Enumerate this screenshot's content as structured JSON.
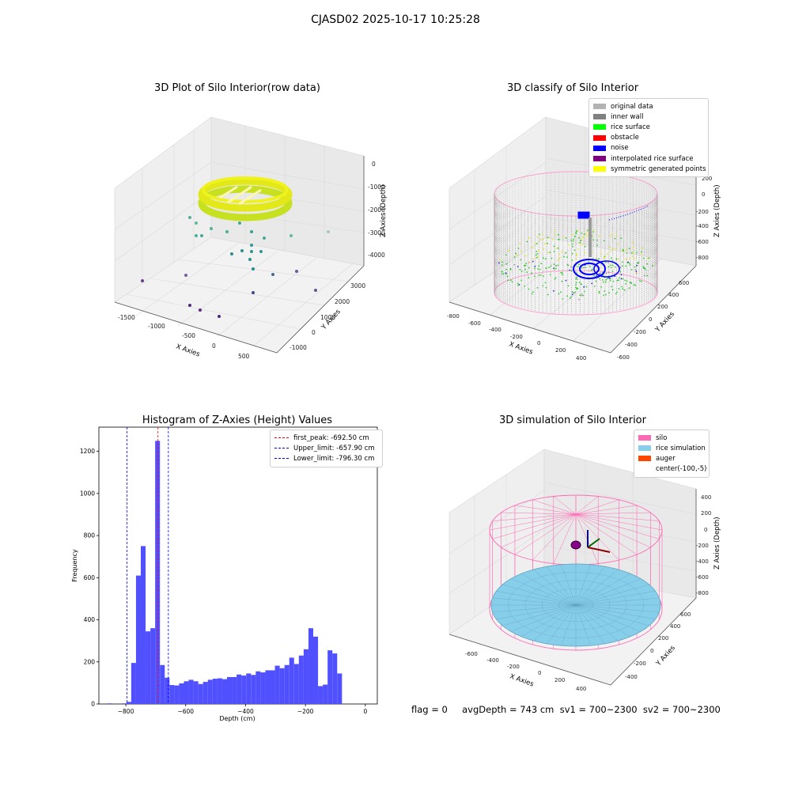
{
  "suptitle": "CJASD02 2025-10-17 10:25:28",
  "footer": "flag = 0     avgDepth = 743 cm  sv1 = 700~2300  sv2 = 700~2300",
  "colors": {
    "pane": "#efefef",
    "pane_side": "#e6e6e6",
    "grid": "#d8d8d8",
    "silo": "#ff69b4",
    "rice_simulation": "#87ceeb",
    "auger": "#ff4500",
    "hist_bar": "#5050ff",
    "first_peak": "#ff0000",
    "limits": "#0000ff"
  },
  "chart_data": [
    {
      "id": "raw",
      "type": "scatter",
      "title": "3D Plot of Silo Interior(row data)",
      "xlabel": "X Axies",
      "ylabel": "Y Axies",
      "zlabel": "Z Axies (Depth)",
      "xticks": [
        "-1500",
        "-1000",
        "-500",
        "0",
        "500"
      ],
      "yticks": [
        "-1000",
        "0",
        "1000",
        "2000",
        "3000"
      ],
      "zticks": [
        "0",
        "-1000",
        "-2000",
        "-3000",
        "-4000"
      ],
      "grid": true,
      "colormap": "viridis"
    },
    {
      "id": "classify",
      "type": "scatter",
      "title": "3D classify of Silo Interior",
      "xlabel": "X Axies",
      "ylabel": "Y Axies",
      "zlabel": "Z Axies (Depth)",
      "xticks": [
        "-800",
        "-600",
        "-400",
        "-200",
        "0",
        "200",
        "400"
      ],
      "yticks": [
        "-600",
        "-400",
        "-200",
        "0",
        "200",
        "400",
        "600"
      ],
      "zticks": [
        "200",
        "0",
        "-200",
        "-400",
        "-600",
        "-800"
      ],
      "grid": true,
      "legend_position": "top-right",
      "legend": [
        {
          "label": "original data",
          "color": "#b3b3b3"
        },
        {
          "label": "inner wall",
          "color": "#808080"
        },
        {
          "label": "rice surface",
          "color": "#00ff00"
        },
        {
          "label": "obstacle",
          "color": "#ff0000"
        },
        {
          "label": "noise",
          "color": "#0000ff"
        },
        {
          "label": "interpolated rice surface",
          "color": "#800080"
        },
        {
          "label": "symmetric generated points",
          "color": "#ffff00"
        }
      ]
    },
    {
      "id": "hist",
      "type": "bar",
      "title": "Histogram of Z-Axies (Height) Values",
      "xlabel": "Depth (cm)",
      "ylabel": "Frequency",
      "xlim": [
        -890,
        40
      ],
      "ylim": [
        0,
        1315
      ],
      "xticks": [
        -800,
        -600,
        -400,
        -200,
        0
      ],
      "yticks": [
        0,
        200,
        400,
        600,
        800,
        1000,
        1200
      ],
      "bin_width": 16,
      "bin_start": -862,
      "values": [
        3,
        0,
        0,
        3,
        10,
        195,
        610,
        750,
        345,
        360,
        1250,
        185,
        125,
        90,
        88,
        98,
        108,
        115,
        108,
        95,
        105,
        115,
        120,
        122,
        118,
        128,
        128,
        140,
        135,
        145,
        138,
        155,
        150,
        160,
        160,
        182,
        170,
        185,
        220,
        190,
        230,
        260,
        360,
        320,
        85,
        92,
        255,
        240,
        145
      ],
      "vlines": [
        {
          "label": "first_peak: -692.50 cm",
          "x": -692.5,
          "color": "#ff0000"
        },
        {
          "label": "Upper_limit: -657.90 cm",
          "x": -657.9,
          "color": "#0000ff"
        },
        {
          "label": "Lower_limit: -796.30 cm",
          "x": -796.3,
          "color": "#0000ff"
        }
      ],
      "legend_position": "top-right"
    },
    {
      "id": "sim",
      "type": "scatter",
      "title": "3D simulation of Silo Interior",
      "xlabel": "X Axies",
      "ylabel": "Y Axies",
      "zlabel": "Z Axies (Depth)",
      "xticks": [
        "-600",
        "-400",
        "-200",
        "0",
        "200",
        "400"
      ],
      "yticks": [
        "-400",
        "-200",
        "0",
        "200",
        "400",
        "600"
      ],
      "zticks": [
        "400",
        "200",
        "0",
        "-200",
        "-400",
        "-600",
        "-800"
      ],
      "grid": true,
      "legend_position": "top-right",
      "legend": [
        {
          "label": "silo",
          "color": "#ff69b4"
        },
        {
          "label": "rice simulation",
          "color": "#87ceeb"
        },
        {
          "label": "auger",
          "color": "#ff4500"
        },
        {
          "label": "center(-100,-5)",
          "color": ""
        }
      ]
    }
  ]
}
